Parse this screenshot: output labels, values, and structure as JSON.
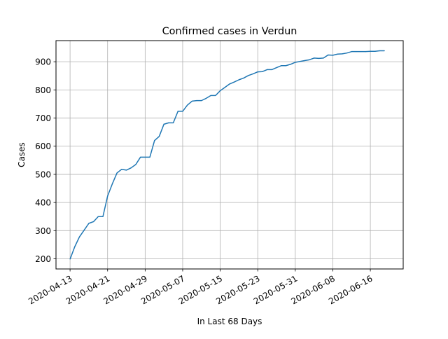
{
  "chart_data": {
    "type": "line",
    "title": "Confirmed cases in Verdun",
    "xlabel": "In Last 68 Days",
    "ylabel": "Cases",
    "grid": true,
    "x_start": "2020-04-13",
    "xlim": [
      "2020-04-10",
      "2020-06-23"
    ],
    "ylim": [
      164,
      975
    ],
    "x_ticks": [
      "2020-04-13",
      "2020-04-21",
      "2020-04-29",
      "2020-05-07",
      "2020-05-15",
      "2020-05-23",
      "2020-05-31",
      "2020-06-08",
      "2020-06-16"
    ],
    "y_ticks": [
      200,
      300,
      400,
      500,
      600,
      700,
      800,
      900
    ],
    "line_color": "#1f77b4",
    "series": [
      {
        "name": "",
        "x": [
          "2020-04-13",
          "2020-04-14",
          "2020-04-15",
          "2020-04-16",
          "2020-04-17",
          "2020-04-18",
          "2020-04-19",
          "2020-04-20",
          "2020-04-21",
          "2020-04-22",
          "2020-04-23",
          "2020-04-24",
          "2020-04-25",
          "2020-04-26",
          "2020-04-27",
          "2020-04-28",
          "2020-04-29",
          "2020-04-30",
          "2020-05-01",
          "2020-05-02",
          "2020-05-03",
          "2020-05-04",
          "2020-05-05",
          "2020-05-06",
          "2020-05-07",
          "2020-05-08",
          "2020-05-09",
          "2020-05-10",
          "2020-05-11",
          "2020-05-12",
          "2020-05-13",
          "2020-05-14",
          "2020-05-15",
          "2020-05-16",
          "2020-05-17",
          "2020-05-18",
          "2020-05-19",
          "2020-05-20",
          "2020-05-21",
          "2020-05-22",
          "2020-05-23",
          "2020-05-24",
          "2020-05-25",
          "2020-05-26",
          "2020-05-27",
          "2020-05-28",
          "2020-05-29",
          "2020-05-30",
          "2020-05-31",
          "2020-06-01",
          "2020-06-02",
          "2020-06-03",
          "2020-06-04",
          "2020-06-05",
          "2020-06-06",
          "2020-06-07",
          "2020-06-08",
          "2020-06-09",
          "2020-06-10",
          "2020-06-11",
          "2020-06-12",
          "2020-06-13",
          "2020-06-14",
          "2020-06-15",
          "2020-06-16",
          "2020-06-17",
          "2020-06-18",
          "2020-06-19"
        ],
        "values": [
          199,
          243,
          278,
          302,
          326,
          332,
          350,
          350,
          423,
          466,
          505,
          518,
          515,
          523,
          535,
          561,
          561,
          561,
          620,
          635,
          678,
          683,
          683,
          724,
          724,
          746,
          760,
          762,
          762,
          770,
          780,
          780,
          797,
          809,
          821,
          828,
          836,
          842,
          851,
          857,
          864,
          865,
          872,
          872,
          879,
          886,
          886,
          891,
          898,
          901,
          904,
          907,
          913,
          912,
          913,
          924,
          923,
          927,
          928,
          931,
          936,
          936,
          936,
          936,
          937,
          937,
          939,
          939
        ]
      }
    ]
  }
}
